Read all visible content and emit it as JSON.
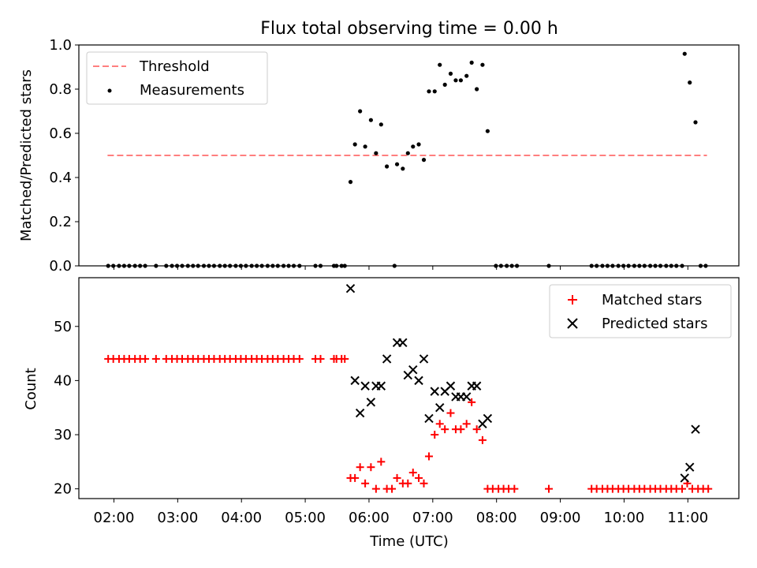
{
  "chart_data": [
    {
      "type": "scatter",
      "title": "Flux total observing time = 0.00 h",
      "xlabel": "",
      "ylabel": "Matched/Predicted stars",
      "ylim": [
        0,
        1.0
      ],
      "yticks": [
        "0.0",
        "0.2",
        "0.4",
        "0.6",
        "0.8",
        "1.0"
      ],
      "ytick_values": [
        0,
        0.2,
        0.4,
        0.6,
        0.8,
        1.0
      ],
      "threshold": {
        "name": "Threshold",
        "value": 0.5,
        "x_range": [
          1.9,
          11.3
        ],
        "color": "#ff7f7f"
      },
      "legend": {
        "position": "upper-left",
        "entries": [
          "Threshold",
          "Measurements"
        ]
      },
      "series": [
        {
          "name": "Measurements",
          "color": "#000000",
          "points": [
            [
              1.91,
              0
            ],
            [
              1.99,
              0
            ],
            [
              2.08,
              0
            ],
            [
              2.16,
              0
            ],
            [
              2.24,
              0
            ],
            [
              2.33,
              0
            ],
            [
              2.41,
              0
            ],
            [
              2.49,
              0
            ],
            [
              2.66,
              0
            ],
            [
              2.82,
              0
            ],
            [
              2.91,
              0
            ],
            [
              2.99,
              0
            ],
            [
              3.07,
              0
            ],
            [
              3.16,
              0
            ],
            [
              3.24,
              0
            ],
            [
              3.32,
              0
            ],
            [
              3.41,
              0
            ],
            [
              3.49,
              0
            ],
            [
              3.57,
              0
            ],
            [
              3.66,
              0
            ],
            [
              3.74,
              0
            ],
            [
              3.82,
              0
            ],
            [
              3.91,
              0
            ],
            [
              3.99,
              0
            ],
            [
              4.07,
              0
            ],
            [
              4.16,
              0
            ],
            [
              4.24,
              0
            ],
            [
              4.32,
              0
            ],
            [
              4.41,
              0
            ],
            [
              4.49,
              0
            ],
            [
              4.57,
              0
            ],
            [
              4.66,
              0
            ],
            [
              4.74,
              0
            ],
            [
              4.82,
              0
            ],
            [
              4.91,
              0
            ],
            [
              5.16,
              0
            ],
            [
              5.24,
              0
            ],
            [
              5.45,
              0
            ],
            [
              5.49,
              0
            ],
            [
              5.57,
              0
            ],
            [
              5.62,
              0
            ],
            [
              6.4,
              0
            ],
            [
              5.71,
              0.38
            ],
            [
              5.78,
              0.55
            ],
            [
              5.86,
              0.7
            ],
            [
              5.94,
              0.54
            ],
            [
              6.03,
              0.66
            ],
            [
              6.11,
              0.51
            ],
            [
              6.19,
              0.64
            ],
            [
              6.28,
              0.45
            ],
            [
              6.44,
              0.46
            ],
            [
              6.53,
              0.44
            ],
            [
              6.61,
              0.51
            ],
            [
              6.69,
              0.54
            ],
            [
              6.78,
              0.55
            ],
            [
              6.86,
              0.48
            ],
            [
              6.94,
              0.79
            ],
            [
              7.03,
              0.79
            ],
            [
              7.11,
              0.91
            ],
            [
              7.19,
              0.82
            ],
            [
              7.28,
              0.87
            ],
            [
              7.36,
              0.84
            ],
            [
              7.44,
              0.84
            ],
            [
              7.53,
              0.86
            ],
            [
              7.61,
              0.92
            ],
            [
              7.69,
              0.8
            ],
            [
              7.78,
              0.91
            ],
            [
              7.86,
              0.61
            ],
            [
              7.99,
              0
            ],
            [
              8.07,
              0
            ],
            [
              8.16,
              0
            ],
            [
              8.24,
              0
            ],
            [
              8.32,
              0
            ],
            [
              8.82,
              0
            ],
            [
              9.49,
              0
            ],
            [
              9.57,
              0
            ],
            [
              9.66,
              0
            ],
            [
              9.74,
              0
            ],
            [
              9.82,
              0
            ],
            [
              9.91,
              0
            ],
            [
              9.99,
              0
            ],
            [
              10.07,
              0
            ],
            [
              10.16,
              0
            ],
            [
              10.24,
              0
            ],
            [
              10.32,
              0
            ],
            [
              10.41,
              0
            ],
            [
              10.49,
              0
            ],
            [
              10.57,
              0
            ],
            [
              10.66,
              0
            ],
            [
              10.74,
              0
            ],
            [
              10.82,
              0
            ],
            [
              10.91,
              0
            ],
            [
              10.95,
              0.96
            ],
            [
              11.03,
              0.83
            ],
            [
              11.12,
              0.65
            ],
            [
              11.2,
              0
            ],
            [
              11.28,
              0
            ]
          ]
        }
      ]
    },
    {
      "type": "scatter",
      "title": "",
      "xlabel": "Time (UTC)",
      "ylabel": "Count",
      "ylim": [
        18.2,
        59
      ],
      "xlim": [
        1.45,
        11.8
      ],
      "yticks": [
        "20",
        "30",
        "40",
        "50"
      ],
      "ytick_values": [
        20,
        30,
        40,
        50
      ],
      "xticks": [
        "02:00",
        "03:00",
        "04:00",
        "05:00",
        "06:00",
        "07:00",
        "08:00",
        "09:00",
        "10:00",
        "11:00"
      ],
      "xtick_values": [
        2,
        3,
        4,
        5,
        6,
        7,
        8,
        9,
        10,
        11
      ],
      "legend": {
        "position": "upper-right",
        "entries": [
          "Matched stars",
          "Predicted stars"
        ]
      },
      "series": [
        {
          "name": "Matched stars",
          "marker": "plus",
          "color": "#ff0000",
          "points": [
            [
              1.91,
              44
            ],
            [
              1.99,
              44
            ],
            [
              2.08,
              44
            ],
            [
              2.16,
              44
            ],
            [
              2.24,
              44
            ],
            [
              2.33,
              44
            ],
            [
              2.41,
              44
            ],
            [
              2.49,
              44
            ],
            [
              2.66,
              44
            ],
            [
              2.82,
              44
            ],
            [
              2.91,
              44
            ],
            [
              2.99,
              44
            ],
            [
              3.07,
              44
            ],
            [
              3.16,
              44
            ],
            [
              3.24,
              44
            ],
            [
              3.32,
              44
            ],
            [
              3.41,
              44
            ],
            [
              3.49,
              44
            ],
            [
              3.57,
              44
            ],
            [
              3.66,
              44
            ],
            [
              3.74,
              44
            ],
            [
              3.82,
              44
            ],
            [
              3.91,
              44
            ],
            [
              3.99,
              44
            ],
            [
              4.07,
              44
            ],
            [
              4.16,
              44
            ],
            [
              4.24,
              44
            ],
            [
              4.32,
              44
            ],
            [
              4.41,
              44
            ],
            [
              4.49,
              44
            ],
            [
              4.57,
              44
            ],
            [
              4.66,
              44
            ],
            [
              4.74,
              44
            ],
            [
              4.82,
              44
            ],
            [
              4.91,
              44
            ],
            [
              5.16,
              44
            ],
            [
              5.24,
              44
            ],
            [
              5.45,
              44
            ],
            [
              5.49,
              44
            ],
            [
              5.57,
              44
            ],
            [
              5.62,
              44
            ],
            [
              5.71,
              22
            ],
            [
              5.78,
              22
            ],
            [
              5.86,
              24
            ],
            [
              5.94,
              21
            ],
            [
              6.03,
              24
            ],
            [
              6.11,
              20
            ],
            [
              6.19,
              25
            ],
            [
              6.28,
              20
            ],
            [
              6.36,
              20
            ],
            [
              6.44,
              22
            ],
            [
              6.53,
              21
            ],
            [
              6.61,
              21
            ],
            [
              6.69,
              23
            ],
            [
              6.78,
              22
            ],
            [
              6.86,
              21
            ],
            [
              6.94,
              26
            ],
            [
              7.03,
              30
            ],
            [
              7.11,
              32
            ],
            [
              7.19,
              31
            ],
            [
              7.28,
              34
            ],
            [
              7.36,
              31
            ],
            [
              7.44,
              31
            ],
            [
              7.53,
              32
            ],
            [
              7.61,
              36
            ],
            [
              7.69,
              31
            ],
            [
              7.78,
              29
            ],
            [
              7.86,
              20
            ],
            [
              7.94,
              20
            ],
            [
              8.03,
              20
            ],
            [
              8.11,
              20
            ],
            [
              8.19,
              20
            ],
            [
              8.28,
              20
            ],
            [
              8.82,
              20
            ],
            [
              9.49,
              20
            ],
            [
              9.57,
              20
            ],
            [
              9.66,
              20
            ],
            [
              9.74,
              20
            ],
            [
              9.82,
              20
            ],
            [
              9.91,
              20
            ],
            [
              9.99,
              20
            ],
            [
              10.07,
              20
            ],
            [
              10.16,
              20
            ],
            [
              10.24,
              20
            ],
            [
              10.32,
              20
            ],
            [
              10.41,
              20
            ],
            [
              10.49,
              20
            ],
            [
              10.57,
              20
            ],
            [
              10.66,
              20
            ],
            [
              10.74,
              20
            ],
            [
              10.82,
              20
            ],
            [
              10.91,
              20
            ],
            [
              10.99,
              21
            ],
            [
              11.07,
              20
            ],
            [
              11.16,
              20
            ],
            [
              11.24,
              20
            ],
            [
              11.32,
              20
            ]
          ]
        },
        {
          "name": "Predicted stars",
          "marker": "x",
          "color": "#000000",
          "points": [
            [
              5.71,
              57
            ],
            [
              5.78,
              40
            ],
            [
              5.86,
              34
            ],
            [
              5.94,
              39
            ],
            [
              6.03,
              36
            ],
            [
              6.11,
              39
            ],
            [
              6.19,
              39
            ],
            [
              6.28,
              44
            ],
            [
              6.44,
              47
            ],
            [
              6.53,
              47
            ],
            [
              6.61,
              41
            ],
            [
              6.69,
              42
            ],
            [
              6.78,
              40
            ],
            [
              6.86,
              44
            ],
            [
              6.94,
              33
            ],
            [
              7.03,
              38
            ],
            [
              7.11,
              35
            ],
            [
              7.19,
              38
            ],
            [
              7.28,
              39
            ],
            [
              7.36,
              37
            ],
            [
              7.44,
              37
            ],
            [
              7.53,
              37
            ],
            [
              7.61,
              39
            ],
            [
              7.69,
              39
            ],
            [
              7.78,
              32
            ],
            [
              7.86,
              33
            ],
            [
              10.95,
              22
            ],
            [
              11.03,
              24
            ],
            [
              11.12,
              31
            ]
          ]
        }
      ]
    }
  ]
}
